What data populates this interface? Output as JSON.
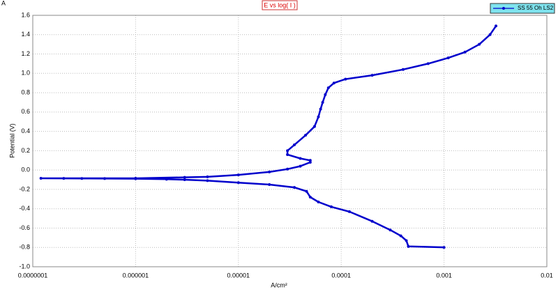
{
  "chart_data": {
    "type": "line",
    "corner_label": "A",
    "title": "E vs log( I )",
    "x_label": "A/cm²",
    "y_label": "Potential (V)",
    "log_x": true,
    "grid": true,
    "legend": "upper right",
    "xlim": [
      1e-07,
      0.01
    ],
    "xticks": [
      {
        "value": 1e-07,
        "label": "0.0000001"
      },
      {
        "value": 1e-06,
        "label": "0.000001"
      },
      {
        "value": 1e-05,
        "label": "0.00001"
      },
      {
        "value": 0.0001,
        "label": "0.0001"
      },
      0.001,
      0.01
    ],
    "ylim": [
      -1.0,
      1.6
    ],
    "yticks": [
      {
        "value": -1.0,
        "label": "-1.0"
      },
      -0.8,
      -0.6,
      -0.4,
      -0.2,
      {
        "value": 0,
        "label": "0.0"
      },
      0.2,
      0.4,
      0.6,
      0.8,
      {
        "value": 1.0,
        "label": "1.0"
      },
      1.2,
      1.4,
      1.6
    ],
    "x": [
      0.001,
      0.00045,
      0.00043,
      0.00038,
      0.0003,
      0.0002,
      0.00012,
      8e-05,
      6e-05,
      5e-05,
      4.6e-05,
      3.5e-05,
      2e-05,
      1e-05,
      5e-06,
      3e-06,
      2e-06,
      1e-06,
      5e-07,
      3e-07,
      2e-07,
      1.2e-07,
      1e-06,
      3e-06,
      5e-06,
      1e-05,
      2e-05,
      3e-05,
      4e-05,
      5e-05,
      5e-05,
      4e-05,
      3e-05,
      3e-05,
      3.5e-05,
      4.5e-05,
      5.5e-05,
      6e-05,
      6.3e-05,
      6.6e-05,
      7e-05,
      7.5e-05,
      8.5e-05,
      0.00011,
      0.0002,
      0.0004,
      0.0007,
      0.0011,
      0.0016,
      0.0022,
      0.0028,
      0.0032
    ],
    "series": [
      {
        "name": "SS 55 Oh LS2",
        "color": "#0000cc",
        "values": [
          -0.8,
          -0.79,
          -0.73,
          -0.68,
          -0.62,
          -0.53,
          -0.43,
          -0.38,
          -0.33,
          -0.28,
          -0.22,
          -0.18,
          -0.15,
          -0.13,
          -0.11,
          -0.1,
          -0.095,
          -0.09,
          -0.088,
          -0.087,
          -0.086,
          -0.085,
          -0.085,
          -0.075,
          -0.07,
          -0.05,
          -0.02,
          0.01,
          0.04,
          0.08,
          0.1,
          0.12,
          0.16,
          0.2,
          0.26,
          0.36,
          0.45,
          0.55,
          0.63,
          0.7,
          0.78,
          0.85,
          0.9,
          0.94,
          0.98,
          1.04,
          1.1,
          1.16,
          1.22,
          1.3,
          1.4,
          1.49
        ]
      }
    ]
  }
}
